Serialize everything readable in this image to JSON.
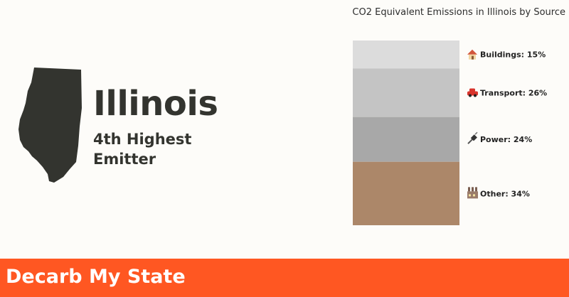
{
  "state": {
    "name": "Illinois",
    "rank": "4th Highest Emitter"
  },
  "chart_data": {
    "type": "bar",
    "stacked": true,
    "title": "CO2 Equivalent Emissions in Illinois by Source",
    "categories": [
      "Buildings",
      "Transport",
      "Power",
      "Other"
    ],
    "values": [
      15,
      26,
      24,
      34
    ],
    "unit": "%",
    "labels": [
      "Buildings: 15%",
      "Transport: 26%",
      "Power: 24%",
      "Other: 34%"
    ],
    "icons": [
      "house-icon",
      "car-icon",
      "plug-icon",
      "factory-icon"
    ],
    "colors": [
      "#dcdcdc",
      "#c4c4c4",
      "#a8a8a8",
      "#ac8769"
    ],
    "legend": "none",
    "grid": false
  },
  "footer": {
    "title": "Decarb My State"
  },
  "colors": {
    "accent": "#ff5722",
    "state_fill": "#33342f",
    "background": "#fdfcf9"
  }
}
